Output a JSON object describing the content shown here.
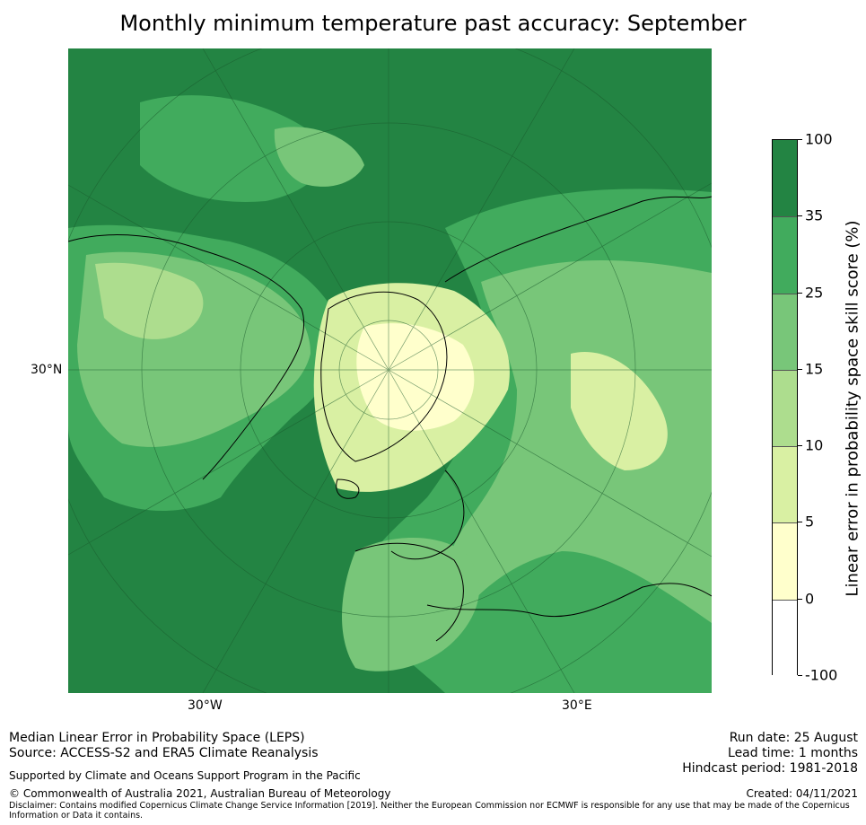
{
  "title": "Monthly minimum temperature past accuracy: September",
  "axes": {
    "lat_label": "30°N",
    "lon_labels": [
      "30°W",
      "30°E"
    ]
  },
  "colorbar": {
    "label": "Linear error in probability space skill score (%)",
    "ticks": [
      "100",
      "35",
      "25",
      "15",
      "10",
      "5",
      "0",
      "-100"
    ],
    "classes": [
      {
        "range": "35 to 100",
        "color": "#238443"
      },
      {
        "range": "25 to 35",
        "color": "#41ab5d"
      },
      {
        "range": "15 to 25",
        "color": "#78c679"
      },
      {
        "range": "10 to 15",
        "color": "#addd8e"
      },
      {
        "range": "5 to 10",
        "color": "#d9f0a3"
      },
      {
        "range": "0 to 5",
        "color": "#ffffcc"
      },
      {
        "range": "-100 to 0",
        "color": "#ffffff"
      }
    ]
  },
  "footer": {
    "metric": "Median Linear Error in Probability Space (LEPS)",
    "source": "Source: ACCESS-S2 and ERA5 Climate Reanalysis",
    "support": "Supported by Climate and Oceans Support Program in the Pacific",
    "copyright": "© Commonwealth of Australia 2021, Australian Bureau of Meteorology",
    "disclaimer": "Disclaimer: Contains modified Copernicus Climate Change Service Information [2019]. Neither the European Commission nor ECMWF is responsible for any use that may be made of the Copernicus Information or Data it contains.",
    "run_date": "Run date: 25 August",
    "lead_time": "Lead time: 1 months",
    "hindcast": "Hindcast period: 1981-2018",
    "created": "Created: 04/11/2021"
  }
}
